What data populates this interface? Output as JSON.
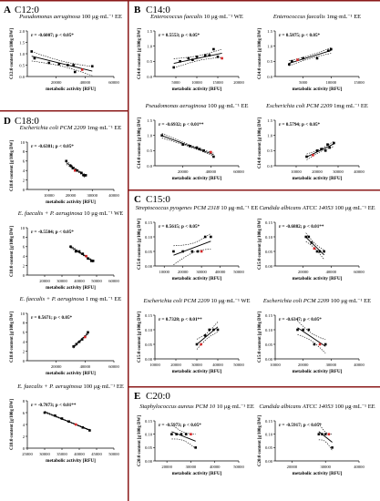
{
  "panels": [
    {
      "letter": "A",
      "title": "C12:0"
    },
    {
      "letter": "B",
      "title": "C14:0"
    },
    {
      "letter": "C",
      "title": "C15:0"
    },
    {
      "letter": "D",
      "title": "C18:0"
    },
    {
      "letter": "E",
      "title": "C20:0"
    }
  ],
  "colors": {
    "divider": "#8b1a1a",
    "points": "#000000",
    "highlight": "#d62728"
  },
  "chart_data": [
    {
      "id": "a1",
      "type": "scatter",
      "organism": "Pseudomonas aeruginosa",
      "conc": "100 μg·mL⁻¹ EE",
      "annotation": "r = -0.6007; p < 0.05*",
      "ylabel": "C12:0 content [g/100g DW]",
      "xlabel": "metabolic activity [RFU]",
      "xticks": [
        20000,
        40000,
        60000
      ],
      "xlim": [
        0,
        60000
      ],
      "yticks": [
        0.0,
        0.5,
        1.0,
        1.5,
        2.0
      ],
      "ylim": [
        0,
        2
      ],
      "x": [
        3000,
        5000,
        15000,
        22000,
        28000,
        32000,
        33000,
        38000,
        45000
      ],
      "y": [
        1.1,
        0.8,
        0.6,
        0.55,
        0.5,
        0.5,
        0.2,
        0.3,
        0.45
      ],
      "highlight": [
        7
      ]
    },
    {
      "id": "b1",
      "type": "scatter",
      "organism": "Enterococcus faecalis",
      "conc": "10 μg·mL⁻¹ WE",
      "annotation": "r = 0.5553; p < 0.05*",
      "ylabel": "C14:0 content [g/100g DW]",
      "xlabel": "metabolic activity [RFU]",
      "xticks": [
        5000,
        10000,
        15000,
        20000
      ],
      "xlim": [
        0,
        20000
      ],
      "yticks": [
        0.0,
        0.5,
        1.0,
        1.5
      ],
      "ylim": [
        0,
        1.5
      ],
      "x": [
        4500,
        6000,
        8000,
        9000,
        10000,
        12000,
        13000,
        14000,
        15000,
        16000
      ],
      "y": [
        0.3,
        0.5,
        0.6,
        0.55,
        0.65,
        0.7,
        0.7,
        0.9,
        0.65,
        0.6
      ],
      "highlight": [
        9
      ]
    },
    {
      "id": "b2",
      "type": "scatter",
      "organism": "Enterococcus faecalis",
      "conc": "1mg·mL⁻¹ EE",
      "annotation": "r = 0.5875; p < 0.05*",
      "ylabel": "C14:0 content [g/100g DW]",
      "xlabel": "metabolic activity [RFU]",
      "xticks": [
        5000,
        10000,
        15000
      ],
      "xlim": [
        0,
        15000
      ],
      "yticks": [
        0.0,
        0.5,
        1.0,
        1.5
      ],
      "ylim": [
        0,
        1.5
      ],
      "x": [
        2500,
        3000,
        4000,
        5000,
        7500,
        9500,
        10000
      ],
      "y": [
        0.4,
        0.5,
        0.55,
        0.6,
        0.6,
        0.85,
        0.9
      ],
      "highlight": [
        2
      ]
    },
    {
      "id": "b3",
      "type": "scatter",
      "organism": "Pseudomonas aeruginosa",
      "conc": "100 μg·mL⁻¹ EE",
      "annotation": "r = -0.6932; p < 0.01**",
      "ylabel": "C14:0 content [g/100g DW]",
      "xlabel": "metabolic activity [RFU]",
      "xticks": [
        20000,
        40000,
        60000
      ],
      "xlim": [
        0,
        60000
      ],
      "yticks": [
        0.0,
        0.5,
        1.0,
        1.5
      ],
      "ylim": [
        0,
        1.5
      ],
      "x": [
        5000,
        20000,
        25000,
        30000,
        32000,
        35000,
        40000,
        42000
      ],
      "y": [
        1.0,
        0.7,
        0.65,
        0.6,
        0.55,
        0.5,
        0.45,
        0.3
      ],
      "highlight": [
        6
      ]
    },
    {
      "id": "b4",
      "type": "scatter",
      "organism": "Escherichia coli PCM 2209",
      "conc": "1mg·mL⁻¹ EE",
      "annotation": "r = 0.5794; p < 0.05*",
      "ylabel": "C14:0 content [g/100g DW]",
      "xlabel": "metabolic activity [RFU]",
      "xticks": [
        10000,
        20000,
        30000,
        40000
      ],
      "xlim": [
        0,
        40000
      ],
      "yticks": [
        0.0,
        0.5,
        1.0,
        1.5
      ],
      "ylim": [
        0,
        1.5
      ],
      "x": [
        15000,
        18000,
        20000,
        22000,
        24000,
        25000,
        26000,
        28000
      ],
      "y": [
        0.3,
        0.35,
        0.5,
        0.55,
        0.5,
        0.7,
        0.6,
        0.75
      ],
      "highlight": [
        1
      ]
    },
    {
      "id": "c1",
      "type": "scatter",
      "organism": "Streptococcus pyogenes PCM 2318",
      "conc": "10 μg·mL⁻¹ EE",
      "annotation": "r = 0.5615; p < 0.05*",
      "ylabel": "C15:0 content [g/100g DW]",
      "xlabel": "metabolic activity [RFU]",
      "xticks": [
        10000,
        20000,
        30000,
        40000,
        50000
      ],
      "xlim": [
        5000,
        50000
      ],
      "yticks": [
        0.0,
        0.05,
        0.1,
        0.15
      ],
      "ylim": [
        0,
        0.15
      ],
      "x": [
        15000,
        20000,
        25000,
        28000,
        30000,
        32000,
        35000
      ],
      "y": [
        0.05,
        0.05,
        0.05,
        0.05,
        0.05,
        0.1,
        0.1
      ],
      "highlight": [
        4
      ]
    },
    {
      "id": "c2",
      "type": "scatter",
      "organism": "Candida albicans ATCC 14053",
      "conc": "100 μg·mL⁻¹ EE",
      "annotation": "r = -0.6882; p < 0.01**",
      "ylabel": "C15:0 content [g/100g DW]",
      "xlabel": "metabolic activity [RFU]",
      "xticks": [
        20000,
        40000,
        60000
      ],
      "xlim": [
        0,
        60000
      ],
      "yticks": [
        0.0,
        0.05,
        0.1,
        0.15
      ],
      "ylim": [
        0,
        0.15
      ],
      "x": [
        22000,
        24000,
        26000,
        28000,
        30000,
        32000,
        35000
      ],
      "y": [
        0.1,
        0.1,
        0.08,
        0.06,
        0.05,
        0.05,
        0.05
      ],
      "highlight": [
        3
      ]
    },
    {
      "id": "c3",
      "type": "scatter",
      "organism": "Escherichia coli PCM 2209",
      "conc": "10 μg·mL⁻¹ WE",
      "annotation": "r = 0.7328; p < 0.01**",
      "ylabel": "C15:0 content [g/100g DW]",
      "xlabel": "metabolic activity [RFU]",
      "xticks": [
        10000,
        20000,
        30000,
        40000,
        50000
      ],
      "xlim": [
        10000,
        50000
      ],
      "yticks": [
        0.0,
        0.05,
        0.1,
        0.15
      ],
      "ylim": [
        0,
        0.15
      ],
      "x": [
        30000,
        32000,
        34000,
        36000,
        38000,
        40000
      ],
      "y": [
        0.05,
        0.05,
        0.08,
        0.1,
        0.1,
        0.1
      ],
      "highlight": [
        1
      ]
    },
    {
      "id": "c4",
      "type": "scatter",
      "organism": "Escherichia coli PCM 2209",
      "conc": "100 μg·mL⁻¹ EE",
      "annotation": "r = -0.6347; p < 0.05*",
      "ylabel": "C15:0 content [g/100g DW]",
      "xlabel": "metabolic activity [RFU]",
      "xticks": [
        10000,
        20000,
        30000,
        40000
      ],
      "xlim": [
        10000,
        40000
      ],
      "yticks": [
        0.0,
        0.05,
        0.1,
        0.15
      ],
      "ylim": [
        0,
        0.15
      ],
      "x": [
        18000,
        20000,
        22000,
        24000,
        26000,
        28000
      ],
      "y": [
        0.1,
        0.1,
        0.1,
        0.05,
        0.05,
        0.05
      ],
      "highlight": [
        4
      ]
    },
    {
      "id": "d1",
      "type": "scatter",
      "organism": "Escherichia coli PCM 2209",
      "conc": "1mg·mL⁻¹ EE",
      "annotation": "r = -0.6381; p < 0.05*",
      "ylabel": "C18:0 content [g/100g DW]",
      "xlabel": "metabolic activity [RFU]",
      "xticks": [
        10000,
        20000,
        30000,
        40000
      ],
      "xlim": [
        0,
        40000
      ],
      "yticks": [
        0,
        2,
        4,
        6,
        8,
        10
      ],
      "ylim": [
        0,
        10
      ],
      "x": [
        18000,
        20000,
        21000,
        22000,
        23000,
        25000,
        26000,
        27000
      ],
      "y": [
        6,
        5,
        4.5,
        4,
        4,
        3.5,
        3,
        3
      ],
      "highlight": [
        3
      ]
    },
    {
      "id": "d2",
      "type": "scatter",
      "organism": "E. faecalis + P. aeruginosa",
      "conc": "10 μg·mL⁻¹ WE",
      "annotation": "r = -0.5584; p < 0.05*",
      "ylabel": "C18:0 content [g/100g DW]",
      "xlabel": "metabolic activity [RFU]",
      "xticks": [
        20000,
        30000,
        40000,
        50000,
        60000
      ],
      "xlim": [
        10000,
        60000
      ],
      "yticks": [
        0,
        2,
        4,
        6,
        8,
        10
      ],
      "ylim": [
        0,
        10
      ],
      "x": [
        35000,
        38000,
        40000,
        42000,
        44000,
        45000,
        47000,
        48000
      ],
      "y": [
        6,
        5,
        5,
        4.5,
        4,
        3.5,
        3,
        3
      ],
      "highlight": [
        4
      ]
    },
    {
      "id": "d3",
      "type": "scatter",
      "organism": "E. faecalis + P. aeruginosa",
      "conc": "1 mg·mL⁻¹ EE",
      "annotation": "r = 0.5671; p < 0.05*",
      "ylabel": "C18:0 content [g/100g DW]",
      "xlabel": "metabolic activity [RFU]",
      "xticks": [
        20000,
        40000,
        60000
      ],
      "xlim": [
        0,
        60000
      ],
      "yticks": [
        0,
        2,
        4,
        6,
        8,
        10
      ],
      "ylim": [
        0,
        10
      ],
      "x": [
        32000,
        34000,
        36000,
        38000,
        40000,
        42000
      ],
      "y": [
        3,
        3.5,
        4,
        4.5,
        5,
        6
      ],
      "highlight": [
        4
      ]
    },
    {
      "id": "d4",
      "type": "scatter",
      "organism": "E. faecalis + P. aeruginosa",
      "conc": "100 μg·mL⁻¹ EE",
      "annotation": "r = -0.7873; p < 0.01**",
      "ylabel": "C18:0 content [g/100g DW]",
      "xlabel": "metabolic activity [RFU]",
      "xticks": [
        25000,
        30000,
        35000,
        40000,
        45000,
        50000
      ],
      "xlim": [
        25000,
        50000
      ],
      "yticks": [
        0,
        2,
        4,
        6,
        8
      ],
      "ylim": [
        0,
        8
      ],
      "x": [
        30000,
        33000,
        35000,
        37000,
        39000,
        41000,
        43000
      ],
      "y": [
        6,
        5.5,
        5,
        4.5,
        4,
        3.5,
        3
      ],
      "highlight": [
        4
      ]
    },
    {
      "id": "e1",
      "type": "scatter",
      "organism": "Staphylococcus aureus PCM 10",
      "conc": "10 μg·mL⁻¹ EE",
      "annotation": "r = -0.5973; p < 0.05*",
      "ylabel": "C20:0 content [g/100g DW]",
      "xlabel": "metabolic activity [RFU]",
      "xticks": [
        20000,
        30000,
        40000,
        50000
      ],
      "xlim": [
        15000,
        50000
      ],
      "yticks": [
        0.0,
        0.05,
        0.1,
        0.15
      ],
      "ylim": [
        0,
        0.15
      ],
      "x": [
        22000,
        24000,
        26000,
        28000,
        30000,
        32000
      ],
      "y": [
        0.1,
        0.1,
        0.1,
        0.1,
        0.1,
        0.05
      ],
      "highlight": [
        4
      ]
    },
    {
      "id": "e2",
      "type": "scatter",
      "organism": "Candida albicans ATCC 14053",
      "conc": "100 μg·mL⁻¹ EE",
      "annotation": "r = -0.5917; p < 0.05*",
      "ylabel": "C20:0 content [g/100g DW]",
      "xlabel": "metabolic activity [RFU]",
      "xticks": [
        20000,
        30000,
        40000
      ],
      "xlim": [
        15000,
        40000
      ],
      "yticks": [
        0.0,
        0.05,
        0.1,
        0.15
      ],
      "ylim": [
        0,
        0.15
      ],
      "x": [
        28000,
        29000,
        30000,
        31000,
        32000
      ],
      "y": [
        0.1,
        0.1,
        0.1,
        0.1,
        0.05
      ],
      "highlight": [
        3
      ]
    }
  ]
}
